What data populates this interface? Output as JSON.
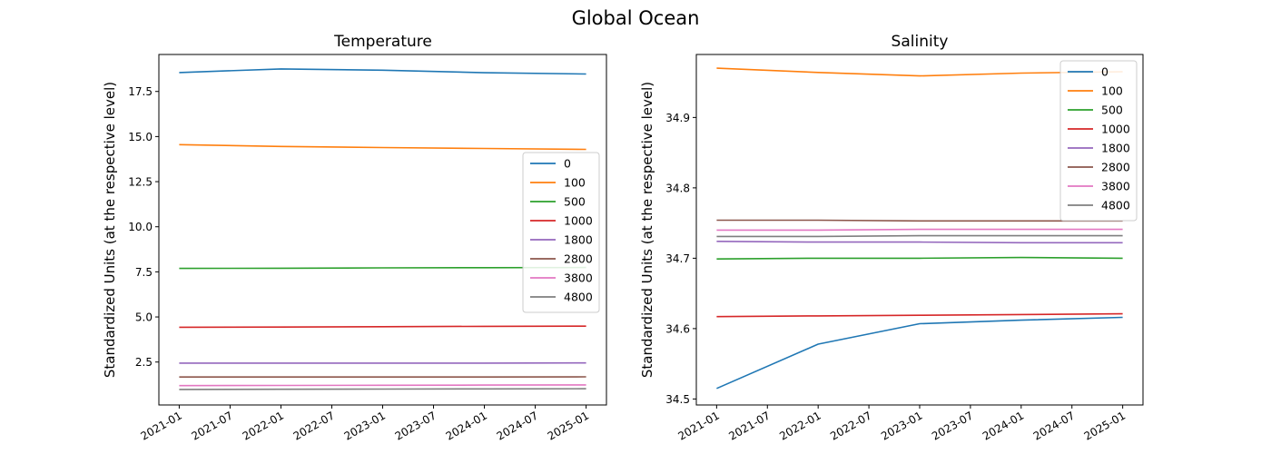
{
  "suptitle": "Global Ocean",
  "chart_data": [
    {
      "type": "line",
      "title": "Temperature",
      "xlabel": "",
      "ylabel": "Standardized Units (at the respective level)",
      "x": [
        "2021-01",
        "2022-01",
        "2023-01",
        "2024-01",
        "2025-01"
      ],
      "xticks": [
        "2021-01",
        "2021-07",
        "2022-01",
        "2022-07",
        "2023-01",
        "2023-07",
        "2024-01",
        "2024-07",
        "2025-01"
      ],
      "yticks": [
        2.5,
        5.0,
        7.5,
        10.0,
        12.5,
        15.0,
        17.5
      ],
      "ytick_labels": [
        "2.5",
        "5.0",
        "7.5",
        "10.0",
        "12.5",
        "15.0",
        "17.5"
      ],
      "ylim": [
        0.12,
        19.55
      ],
      "legend_position": "center-right",
      "series": [
        {
          "name": "0",
          "color": "#1f77b4",
          "values": [
            18.55,
            18.75,
            18.68,
            18.54,
            18.47
          ]
        },
        {
          "name": "100",
          "color": "#ff7f0e",
          "values": [
            14.55,
            14.45,
            14.39,
            14.34,
            14.29
          ]
        },
        {
          "name": "500",
          "color": "#2ca02c",
          "values": [
            7.69,
            7.7,
            7.72,
            7.73,
            7.74
          ]
        },
        {
          "name": "1000",
          "color": "#d62728",
          "values": [
            4.43,
            4.44,
            4.46,
            4.48,
            4.49
          ]
        },
        {
          "name": "1800",
          "color": "#9467bd",
          "values": [
            2.44,
            2.44,
            2.44,
            2.44,
            2.45
          ]
        },
        {
          "name": "2800",
          "color": "#8c564b",
          "values": [
            1.67,
            1.67,
            1.67,
            1.67,
            1.68
          ]
        },
        {
          "name": "3800",
          "color": "#e377c2",
          "values": [
            1.19,
            1.2,
            1.21,
            1.22,
            1.23
          ]
        },
        {
          "name": "4800",
          "color": "#7f7f7f",
          "values": [
            0.98,
            0.99,
            1.0,
            1.01,
            1.02
          ]
        }
      ]
    },
    {
      "type": "line",
      "title": "Salinity",
      "xlabel": "",
      "ylabel": "Standardized Units (at the respective level)",
      "x": [
        "2021-01",
        "2022-01",
        "2023-01",
        "2024-01",
        "2025-01"
      ],
      "xticks": [
        "2021-01",
        "2021-07",
        "2022-01",
        "2022-07",
        "2023-01",
        "2023-07",
        "2024-01",
        "2024-07",
        "2025-01"
      ],
      "yticks": [
        34.5,
        34.6,
        34.7,
        34.8,
        34.9
      ],
      "ytick_labels": [
        "34.5",
        "34.6",
        "34.7",
        "34.8",
        "34.9"
      ],
      "ylim": [
        34.4915,
        34.9895
      ],
      "legend_position": "top-right",
      "series": [
        {
          "name": "0",
          "color": "#1f77b4",
          "values": [
            34.515,
            34.578,
            34.607,
            34.612,
            34.616
          ]
        },
        {
          "name": "100",
          "color": "#ff7f0e",
          "values": [
            34.97,
            34.964,
            34.959,
            34.963,
            34.965
          ]
        },
        {
          "name": "500",
          "color": "#2ca02c",
          "values": [
            34.699,
            34.7,
            34.7,
            34.701,
            34.7
          ]
        },
        {
          "name": "1000",
          "color": "#d62728",
          "values": [
            34.617,
            34.618,
            34.619,
            34.62,
            34.621
          ]
        },
        {
          "name": "1800",
          "color": "#9467bd",
          "values": [
            34.724,
            34.723,
            34.723,
            34.722,
            34.722
          ]
        },
        {
          "name": "2800",
          "color": "#8c564b",
          "values": [
            34.754,
            34.754,
            34.753,
            34.753,
            34.753
          ]
        },
        {
          "name": "3800",
          "color": "#e377c2",
          "values": [
            34.74,
            34.74,
            34.741,
            34.741,
            34.741
          ]
        },
        {
          "name": "4800",
          "color": "#7f7f7f",
          "values": [
            34.731,
            34.731,
            34.732,
            34.732,
            34.732
          ]
        }
      ]
    }
  ]
}
